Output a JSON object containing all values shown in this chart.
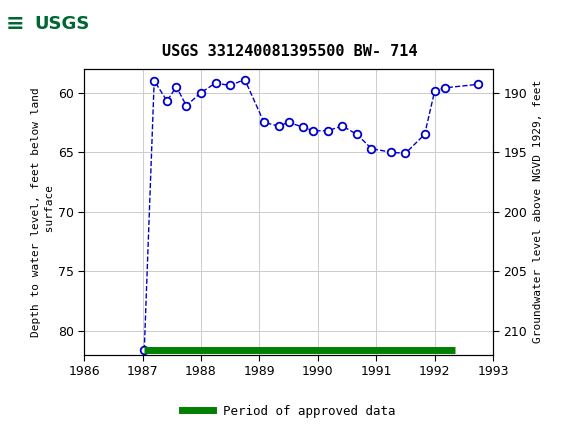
{
  "title": "USGS 331240081395500 BW- 714",
  "ylabel_left": "Depth to water level, feet below land\n surface",
  "ylabel_right": "Groundwater level above NGVD 1929, feet",
  "xlim": [
    1986,
    1993
  ],
  "ylim_left": [
    58,
    82
  ],
  "ylim_right": [
    188,
    212
  ],
  "yticks_left": [
    60,
    65,
    70,
    75,
    80
  ],
  "yticks_right": [
    190,
    195,
    200,
    205,
    210
  ],
  "xticks": [
    1986,
    1987,
    1988,
    1989,
    1990,
    1991,
    1992,
    1993
  ],
  "data_x": [
    1987.03,
    1987.2,
    1987.42,
    1987.58,
    1987.75,
    1988.0,
    1988.25,
    1988.5,
    1988.75,
    1989.08,
    1989.33,
    1989.5,
    1989.75,
    1989.92,
    1990.17,
    1990.42,
    1990.67,
    1990.92,
    1991.25,
    1991.5,
    1991.83,
    1992.0,
    1992.17,
    1992.75
  ],
  "data_y": [
    81.6,
    59.0,
    60.7,
    59.5,
    61.1,
    60.0,
    59.2,
    59.4,
    58.9,
    62.5,
    62.8,
    62.5,
    62.9,
    63.2,
    63.2,
    62.8,
    63.5,
    64.7,
    65.0,
    65.1,
    63.5,
    59.9,
    59.6,
    59.3
  ],
  "line_color": "#0000cc",
  "marker_facecolor": "#ffffff",
  "marker_edgecolor": "#0000cc",
  "approved_start": 1987.03,
  "approved_end": 1992.35,
  "approved_y": 81.6,
  "approved_color": "#008000",
  "header_color": "#006633",
  "grid_color": "#cccccc",
  "background_color": "#ffffff",
  "title_fontsize": 11,
  "tick_fontsize": 9,
  "label_fontsize": 8,
  "legend_text": "Period of approved data"
}
